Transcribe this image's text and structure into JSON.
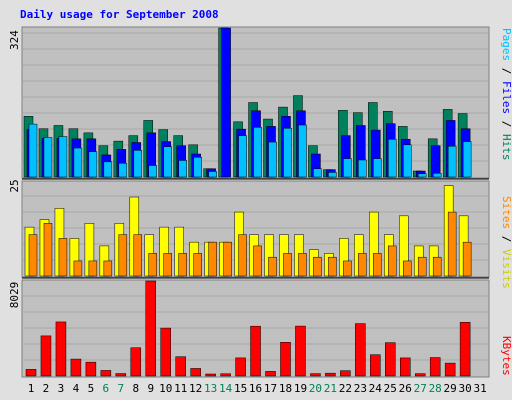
{
  "chart_data": [
    {
      "type": "bar",
      "panel": "hits-files-pages",
      "title": "Daily usage for September 2008",
      "categories": [
        "1",
        "2",
        "3",
        "4",
        "5",
        "6",
        "7",
        "8",
        "9",
        "10",
        "11",
        "12",
        "13",
        "14",
        "15",
        "16",
        "17",
        "18",
        "19",
        "20",
        "21",
        "22",
        "23",
        "24",
        "25",
        "26",
        "27",
        "28",
        "29",
        "30",
        "31"
      ],
      "weekend_days": [
        "6",
        "7",
        "13",
        "14",
        "20",
        "21",
        "27",
        "28"
      ],
      "ymax_label": "324",
      "ylim": [
        0,
        324
      ],
      "grid": true,
      "series": [
        {
          "name": "Hits",
          "color": "#00805c",
          "values": [
            132,
            105,
            112,
            105,
            96,
            68,
            78,
            90,
            123,
            103,
            90,
            70,
            18,
            324,
            120,
            162,
            126,
            152,
            177,
            68,
            16,
            145,
            140,
            162,
            143,
            110,
            13,
            83,
            147,
            138,
            null
          ]
        },
        {
          "name": "Files",
          "color": "#0000ff",
          "values": [
            103,
            84,
            84,
            83,
            83,
            48,
            60,
            75,
            96,
            77,
            68,
            50,
            18,
            324,
            104,
            144,
            110,
            132,
            144,
            50,
            16,
            90,
            112,
            102,
            116,
            82,
            13,
            68,
            123,
            105,
            null
          ]
        },
        {
          "name": "Pages",
          "color": "#00c0ff",
          "values": [
            115,
            86,
            88,
            63,
            55,
            33,
            30,
            58,
            25,
            66,
            36,
            43,
            12,
            0,
            90,
            108,
            76,
            106,
            113,
            18,
            10,
            40,
            37,
            40,
            82,
            70,
            7,
            8,
            67,
            77,
            null
          ]
        }
      ],
      "series_order_label": [
        "Pages",
        "Files",
        "Hits"
      ]
    },
    {
      "type": "bar",
      "panel": "visits-sites",
      "categories": [
        "1",
        "2",
        "3",
        "4",
        "5",
        "6",
        "7",
        "8",
        "9",
        "10",
        "11",
        "12",
        "13",
        "14",
        "15",
        "16",
        "17",
        "18",
        "19",
        "20",
        "21",
        "22",
        "23",
        "24",
        "25",
        "26",
        "27",
        "28",
        "29",
        "30",
        "31"
      ],
      "ymax_label": "25",
      "ylim": [
        0,
        25
      ],
      "grid": true,
      "series": [
        {
          "name": "Visits",
          "color": "#ffff00",
          "values": [
            13,
            15,
            18,
            10,
            14,
            8,
            14,
            21,
            11,
            13,
            13,
            9,
            9,
            9,
            17,
            11,
            11,
            11,
            11,
            7,
            6,
            10,
            11,
            17,
            11,
            16,
            8,
            8,
            24,
            16,
            null
          ]
        },
        {
          "name": "Sites",
          "color": "#ff8800",
          "values": [
            11,
            14,
            10,
            4,
            4,
            4,
            11,
            11,
            6,
            6,
            6,
            6,
            9,
            9,
            11,
            8,
            5,
            6,
            6,
            5,
            5,
            4,
            6,
            6,
            8,
            4,
            5,
            5,
            17,
            9,
            null
          ]
        }
      ],
      "series_order_label": [
        "Sites",
        "Visits"
      ]
    },
    {
      "type": "bar",
      "panel": "kbytes",
      "categories": [
        "1",
        "2",
        "3",
        "4",
        "5",
        "6",
        "7",
        "8",
        "9",
        "10",
        "11",
        "12",
        "13",
        "14",
        "15",
        "16",
        "17",
        "18",
        "19",
        "20",
        "21",
        "22",
        "23",
        "24",
        "25",
        "26",
        "27",
        "28",
        "29",
        "30",
        "31"
      ],
      "ymax_label": "8029",
      "ylim": [
        0,
        8029
      ],
      "grid": true,
      "series": [
        {
          "name": "KBytes",
          "color": "#ff0000",
          "values": [
            560,
            3390,
            4570,
            1430,
            1170,
            470,
            210,
            2390,
            8029,
            4050,
            1630,
            640,
            64,
            188,
            1530,
            4210,
            390,
            2850,
            4220,
            200,
            240,
            450,
            4430,
            1800,
            2820,
            1530,
            200,
            1560,
            1090,
            4540,
            null
          ]
        }
      ]
    }
  ],
  "colors": {
    "background": "#c0c0c0",
    "outer": "#e0e0e0",
    "title_text": "#0000ff",
    "weekend_label": "#00805c",
    "weekday_label": "#000000",
    "separator": "#000000"
  }
}
